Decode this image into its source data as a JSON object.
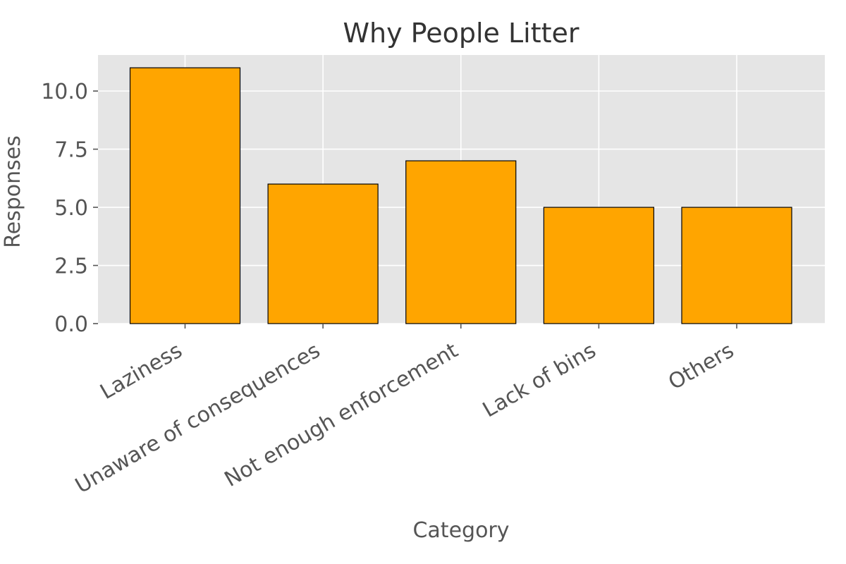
{
  "chart_data": {
    "type": "bar",
    "title": "Why People Litter",
    "xlabel": "Category",
    "ylabel": "Responses",
    "categories": [
      "Laziness",
      "Unaware of consequences",
      "Not enough enforcement",
      "Lack of bins",
      "Others"
    ],
    "values": [
      11,
      6,
      7,
      5,
      5
    ],
    "ylim": [
      0,
      11.55
    ],
    "yticks": [
      "0.0",
      "2.5",
      "5.0",
      "7.5",
      "10.0"
    ],
    "ytick_values": [
      0,
      2.5,
      5,
      7.5,
      10
    ],
    "grid": true,
    "legend": "none",
    "colors": {
      "bar_fill": "#FFA500",
      "bar_edge": "#000000",
      "plot_background": "#E5E5E5",
      "grid": "#FFFFFF"
    }
  }
}
